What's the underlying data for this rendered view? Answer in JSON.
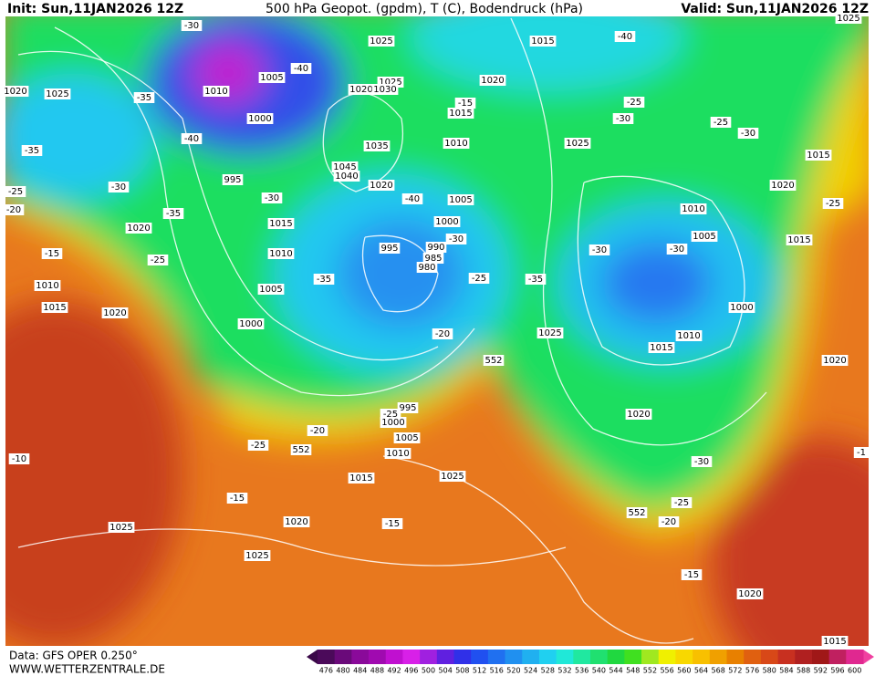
{
  "header": {
    "init": "Init: Sun,11JAN2026 12Z",
    "title": "500 hPa Geopot. (gpdm), T (C), Bodendruck (hPa)",
    "valid": "Valid: Sun,11JAN2026 12Z"
  },
  "footer": {
    "source": "Data: GFS OPER 0.250°",
    "site": "WWW.WETTERZENTRALE.DE"
  },
  "scale": {
    "values": [
      476,
      480,
      484,
      488,
      492,
      496,
      500,
      504,
      508,
      512,
      516,
      520,
      524,
      528,
      532,
      536,
      540,
      544,
      548,
      552,
      556,
      560,
      564,
      568,
      572,
      576,
      580,
      584,
      588,
      592,
      596,
      600
    ],
    "colors": [
      "#4b0a5a",
      "#6a0a7a",
      "#8a0a9a",
      "#a00ab0",
      "#c010d0",
      "#d820e8",
      "#a020e0",
      "#6020e0",
      "#3030e8",
      "#2050f0",
      "#2070f0",
      "#2090f0",
      "#20b0f0",
      "#20d0f0",
      "#20e8d8",
      "#20e8a0",
      "#20e070",
      "#20d840",
      "#40e020",
      "#a0e820",
      "#f0f000",
      "#f8d800",
      "#f8c000",
      "#f0a000",
      "#e88000",
      "#e06010",
      "#d84818",
      "#c83020",
      "#b02020",
      "#a01818",
      "#c02060",
      "#e02890"
    ]
  },
  "map": {
    "labels": [
      "1025",
      "1015",
      "-40",
      "-30",
      "1025",
      "1020",
      "1025",
      "1010",
      "1005",
      "-40",
      "-35",
      "1000",
      "1025",
      "1020",
      "1030",
      "1020",
      "1015",
      "-15",
      "-25",
      "-30",
      "-25",
      "-30",
      "1025",
      "1010",
      "1035",
      "-35",
      "-40",
      "1045",
      "1040",
      "1020",
      "1015",
      "995",
      "-30",
      "-25",
      "-20",
      "-30",
      "-40",
      "1005",
      "1020",
      "-25",
      "1010",
      "1020",
      "-35",
      "1015",
      "1000",
      "1005",
      "1015",
      "-30",
      "990",
      "995",
      "-30",
      "-30",
      "-15",
      "-25",
      "985",
      "1010",
      "980",
      "-35",
      "-25",
      "-35",
      "1010",
      "1005",
      "1015",
      "1020",
      "1000",
      "1000",
      "1025",
      "-20",
      "1010",
      "1015",
      "1020",
      "552",
      "995",
      "-25",
      "1000",
      "1020",
      "-20",
      "1005",
      "-25",
      "552",
      "1010",
      "-10",
      "-30",
      "-1",
      "1015",
      "1025",
      "-15",
      "-25",
      "552",
      "-20",
      "1020",
      "-15",
      "1025",
      "1025",
      "-15",
      "1020",
      "1015"
    ]
  }
}
